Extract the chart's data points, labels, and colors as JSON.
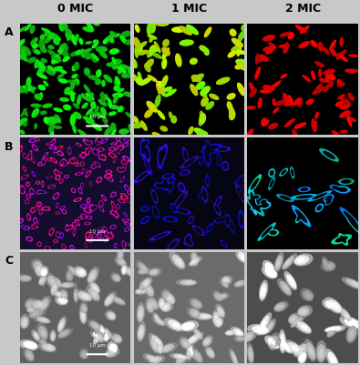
{
  "col_headers": [
    "0 MIC",
    "1 MIC",
    "2 MIC"
  ],
  "row_labels": [
    "A",
    "B",
    "C"
  ],
  "background_color": "#c8c8c8",
  "header_fontsize": 9,
  "label_fontsize": 9,
  "scalebar_text": "10 μm",
  "grid_rows": 3,
  "grid_cols": 3
}
